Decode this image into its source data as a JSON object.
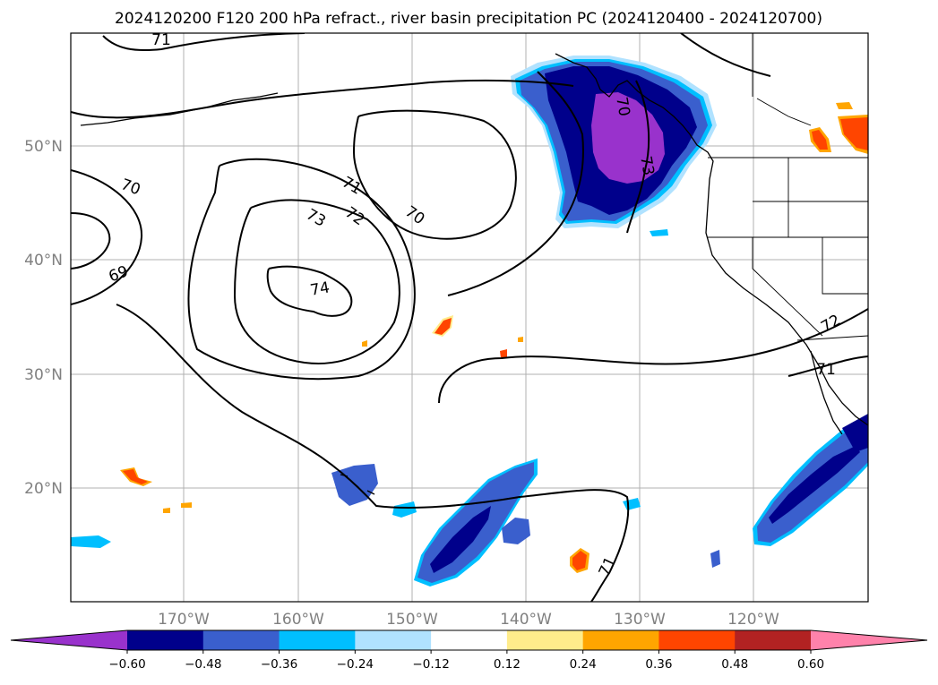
{
  "title": "2024120200 F120 200 hPa refract., river basin precipitation PC (2024120400 - 2024120700)",
  "map": {
    "lat_labels": [
      "50°N",
      "40°N",
      "30°N",
      "20°N"
    ],
    "lon_labels": [
      "170°W",
      "160°W",
      "150°W",
      "140°W",
      "130°W",
      "120°W"
    ],
    "contour_labels": [
      "71",
      "70",
      "71",
      "72",
      "73",
      "70",
      "74",
      "69",
      "73",
      "72",
      "71",
      "71",
      "70"
    ],
    "contour_color": "#000000"
  },
  "colorbar": {
    "colors": [
      "#9932CC",
      "#00008B",
      "#3A5FCD",
      "#00BFFF",
      "#B0E2FF",
      "#FFFFFF",
      "#FFEC8B",
      "#FFA500",
      "#FF4500",
      "#B22222",
      "#FF82AB"
    ],
    "tick_labels": [
      "−0.60",
      "−0.48",
      "−0.36",
      "−0.24",
      "−0.12",
      "0.12",
      "0.24",
      "0.36",
      "0.48",
      "0.60"
    ]
  }
}
